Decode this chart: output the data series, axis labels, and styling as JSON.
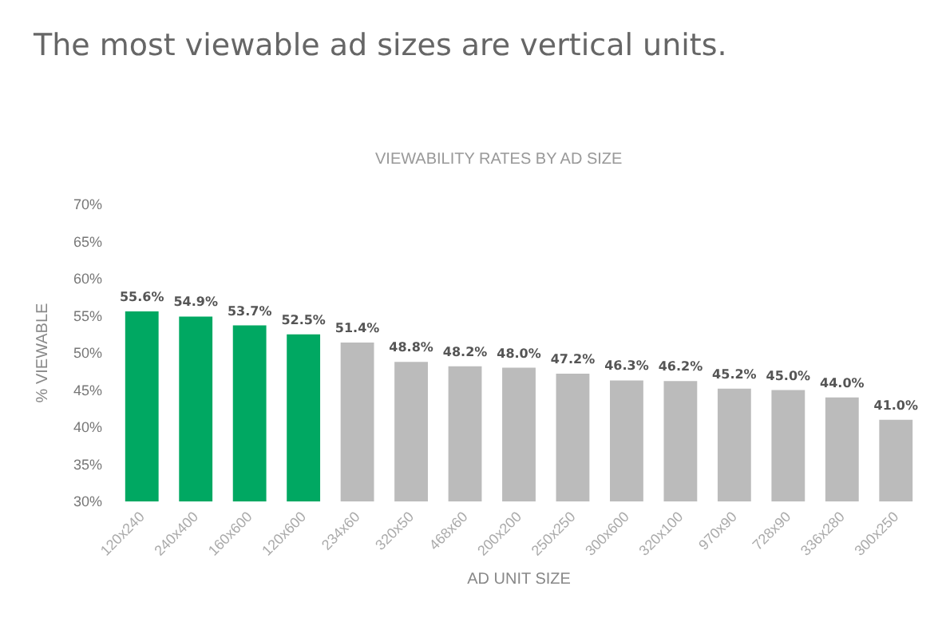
{
  "chart_data": {
    "type": "bar",
    "title": "The most viewable ad sizes are vertical units.",
    "subtitle": "VIEWABILITY RATES BY AD SIZE",
    "xlabel": "AD UNIT SIZE",
    "ylabel": "% VIEWABLE",
    "categories": [
      "120x240",
      "240x400",
      "160x600",
      "120x600",
      "234x60",
      "320x50",
      "468x60",
      "200x200",
      "250x250",
      "300x600",
      "320x100",
      "970x90",
      "728x90",
      "336x280",
      "300x250"
    ],
    "values": [
      55.6,
      54.9,
      53.7,
      52.5,
      51.4,
      48.8,
      48.2,
      48.0,
      47.2,
      46.3,
      46.2,
      45.2,
      45.0,
      44.0,
      41.0
    ],
    "colors": [
      "#00a862",
      "#00a862",
      "#00a862",
      "#00a862",
      "#bbbbbb",
      "#bbbbbb",
      "#bbbbbb",
      "#bbbbbb",
      "#bbbbbb",
      "#bbbbbb",
      "#bbbbbb",
      "#bbbbbb",
      "#bbbbbb",
      "#bbbbbb",
      "#bbbbbb"
    ],
    "value_labels": [
      "55.6%",
      "54.9%",
      "53.7%",
      "52.5%",
      "51.4%",
      "48.8%",
      "48.2%",
      "48.0%",
      "47.2%",
      "46.3%",
      "46.2%",
      "45.2%",
      "45.0%",
      "44.0%",
      "41.0%"
    ],
    "ylim": [
      30,
      70
    ],
    "yticks": [
      {
        "value": 30,
        "label": "30%"
      },
      {
        "value": 35,
        "label": "35%"
      },
      {
        "value": 40,
        "label": "40%"
      },
      {
        "value": 45,
        "label": "45%"
      },
      {
        "value": 50,
        "label": "50%"
      },
      {
        "value": 55,
        "label": "55%"
      },
      {
        "value": 60,
        "label": "60%"
      },
      {
        "value": 65,
        "label": "65%"
      },
      {
        "value": 70,
        "label": "70%"
      }
    ],
    "grid": false
  }
}
